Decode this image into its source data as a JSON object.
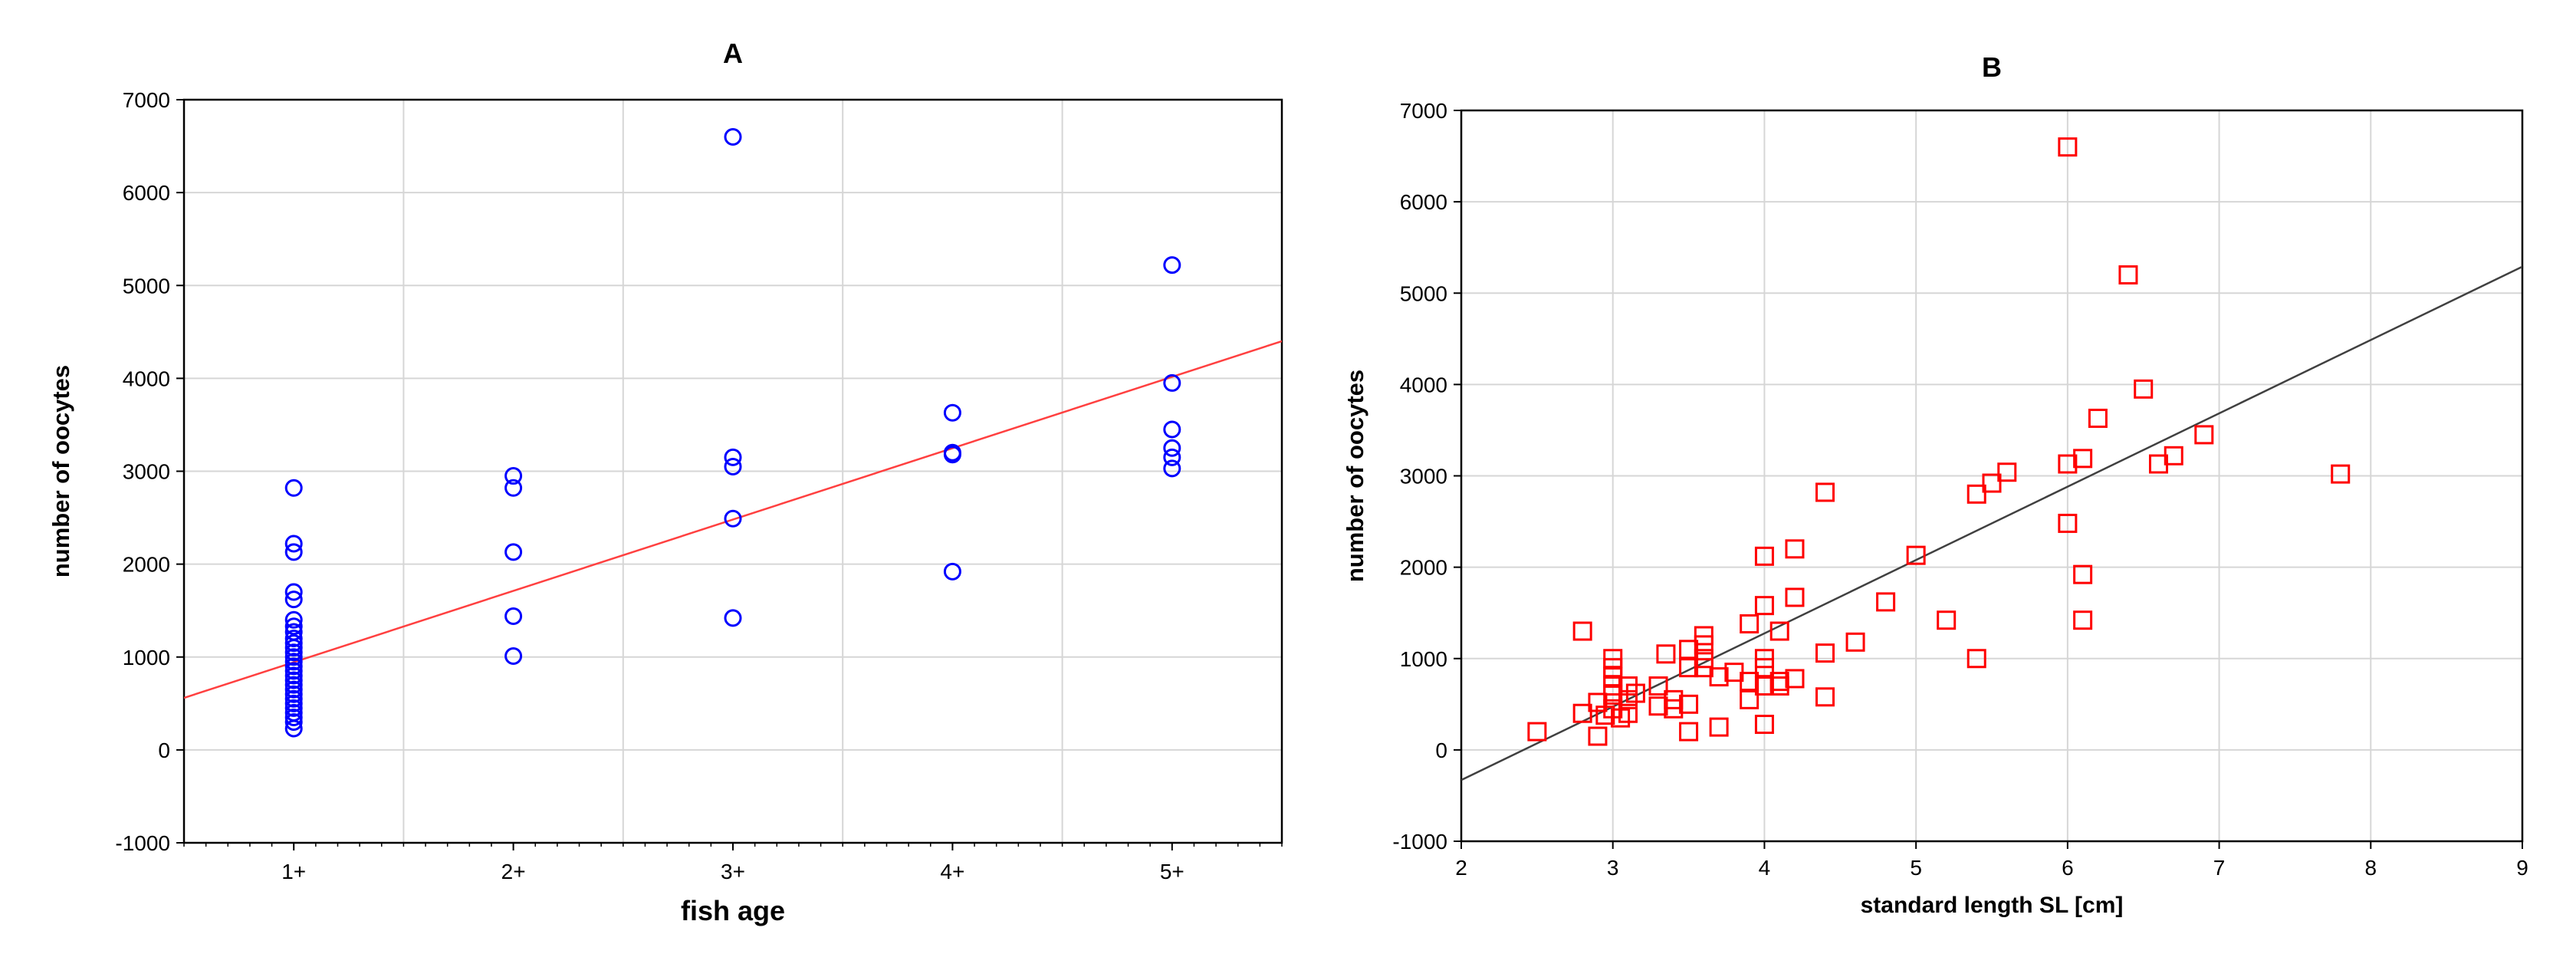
{
  "chart_data": [
    {
      "type": "scatter",
      "title": "A",
      "xlabel": "fish age",
      "ylabel": "number of oocytes",
      "categories": [
        "1+",
        "2+",
        "3+",
        "4+",
        "5+"
      ],
      "xlim": [
        0.5,
        5.5
      ],
      "ylim": [
        -1000,
        7000
      ],
      "yticks": [
        -1000,
        0,
        1000,
        2000,
        3000,
        4000,
        5000,
        6000,
        7000
      ],
      "grid": true,
      "marker": "circle",
      "marker_color": "#0000ff",
      "line_color": "#ff4040",
      "points": [
        [
          1,
          2820
        ],
        [
          1,
          2220
        ],
        [
          1,
          2130
        ],
        [
          1,
          1700
        ],
        [
          1,
          1620
        ],
        [
          1,
          1400
        ],
        [
          1,
          1330
        ],
        [
          1,
          1270
        ],
        [
          1,
          1200
        ],
        [
          1,
          1150
        ],
        [
          1,
          1100
        ],
        [
          1,
          1050
        ],
        [
          1,
          1000
        ],
        [
          1,
          950
        ],
        [
          1,
          900
        ],
        [
          1,
          850
        ],
        [
          1,
          800
        ],
        [
          1,
          750
        ],
        [
          1,
          700
        ],
        [
          1,
          650
        ],
        [
          1,
          600
        ],
        [
          1,
          550
        ],
        [
          1,
          500
        ],
        [
          1,
          450
        ],
        [
          1,
          400
        ],
        [
          1,
          350
        ],
        [
          1,
          300
        ],
        [
          1,
          230
        ],
        [
          2,
          2950
        ],
        [
          2,
          2820
        ],
        [
          2,
          2130
        ],
        [
          2,
          1440
        ],
        [
          2,
          1010
        ],
        [
          3,
          6600
        ],
        [
          3,
          3150
        ],
        [
          3,
          3050
        ],
        [
          3,
          2490
        ],
        [
          3,
          1420
        ],
        [
          4,
          3630
        ],
        [
          4,
          3200
        ],
        [
          4,
          3180
        ],
        [
          4,
          1920
        ],
        [
          5,
          5220
        ],
        [
          5,
          3950
        ],
        [
          5,
          3450
        ],
        [
          5,
          3250
        ],
        [
          5,
          3150
        ],
        [
          5,
          3030
        ]
      ],
      "fit_line": [
        [
          0.5,
          560
        ],
        [
          5.5,
          4400
        ]
      ]
    },
    {
      "type": "scatter",
      "title": "B",
      "xlabel": "standard length SL [cm]",
      "ylabel": "number of oocytes",
      "xlim": [
        2,
        9
      ],
      "ylim": [
        -1000,
        7000
      ],
      "xticks": [
        2,
        3,
        4,
        5,
        6,
        7,
        8,
        9
      ],
      "yticks": [
        -1000,
        0,
        1000,
        2000,
        3000,
        4000,
        5000,
        6000,
        7000
      ],
      "grid": true,
      "marker": "square",
      "marker_color": "#ff0000",
      "line_color": "#404040",
      "points": [
        [
          2.5,
          200
        ],
        [
          2.8,
          1300
        ],
        [
          2.8,
          400
        ],
        [
          2.9,
          520
        ],
        [
          2.9,
          150
        ],
        [
          2.95,
          380
        ],
        [
          3.0,
          1000
        ],
        [
          3.0,
          900
        ],
        [
          3.0,
          800
        ],
        [
          3.0,
          700
        ],
        [
          3.0,
          600
        ],
        [
          3.0,
          450
        ],
        [
          3.05,
          350
        ],
        [
          3.1,
          700
        ],
        [
          3.1,
          550
        ],
        [
          3.1,
          400
        ],
        [
          3.15,
          620
        ],
        [
          3.3,
          700
        ],
        [
          3.3,
          480
        ],
        [
          3.35,
          1050
        ],
        [
          3.4,
          550
        ],
        [
          3.4,
          450
        ],
        [
          3.5,
          1100
        ],
        [
          3.5,
          900
        ],
        [
          3.5,
          500
        ],
        [
          3.5,
          200
        ],
        [
          3.6,
          1250
        ],
        [
          3.6,
          1150
        ],
        [
          3.6,
          1000
        ],
        [
          3.6,
          900
        ],
        [
          3.7,
          800
        ],
        [
          3.7,
          250
        ],
        [
          3.8,
          850
        ],
        [
          3.9,
          1380
        ],
        [
          3.9,
          750
        ],
        [
          3.9,
          550
        ],
        [
          4.0,
          2120
        ],
        [
          4.0,
          1580
        ],
        [
          4.0,
          1000
        ],
        [
          4.0,
          900
        ],
        [
          4.0,
          700
        ],
        [
          4.0,
          280
        ],
        [
          4.1,
          1300
        ],
        [
          4.1,
          750
        ],
        [
          4.1,
          700
        ],
        [
          4.2,
          2200
        ],
        [
          4.2,
          1670
        ],
        [
          4.2,
          780
        ],
        [
          4.4,
          2820
        ],
        [
          4.4,
          1060
        ],
        [
          4.4,
          580
        ],
        [
          4.6,
          1180
        ],
        [
          4.8,
          1620
        ],
        [
          5.0,
          2130
        ],
        [
          5.2,
          1420
        ],
        [
          5.4,
          2800
        ],
        [
          5.4,
          1000
        ],
        [
          5.5,
          2920
        ],
        [
          5.6,
          3040
        ],
        [
          6.0,
          6600
        ],
        [
          6.0,
          3130
        ],
        [
          6.0,
          2480
        ],
        [
          6.1,
          3190
        ],
        [
          6.1,
          1920
        ],
        [
          6.1,
          1420
        ],
        [
          6.2,
          3630
        ],
        [
          6.4,
          5200
        ],
        [
          6.5,
          3950
        ],
        [
          6.6,
          3130
        ],
        [
          6.7,
          3220
        ],
        [
          6.9,
          3450
        ],
        [
          7.8,
          3020
        ]
      ],
      "fit_line": [
        [
          2,
          -330
        ],
        [
          9,
          5290
        ]
      ]
    }
  ]
}
